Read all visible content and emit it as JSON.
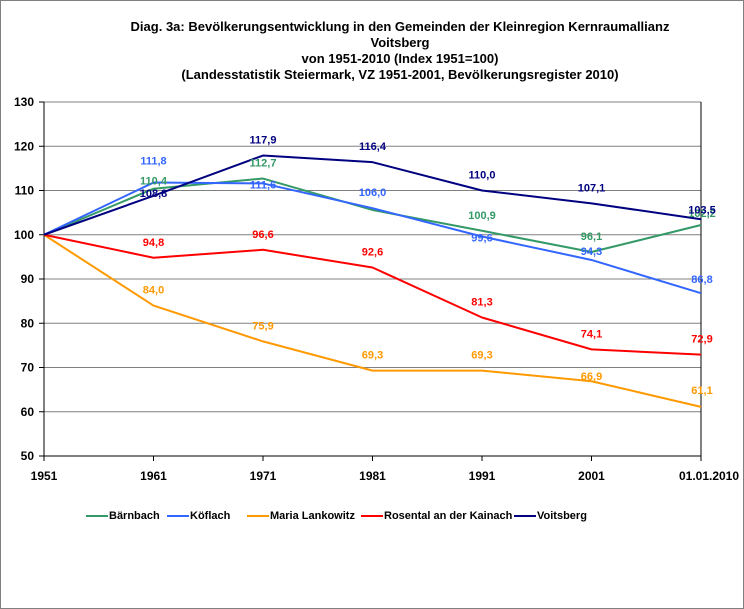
{
  "chart_data": {
    "type": "line",
    "title": "Diag. 3a: Bevölkerungsentwicklung  in den Gemeinden  der Kleinregion  Kernraumallianz Voitsberg",
    "title_lines": [
      "Diag. 3a: Bevölkerungsentwicklung  in den Gemeinden  der Kleinregion  Kernraumallianz",
      "Voitsberg",
      "von 1951-2010  (Index 1951=100)",
      "(Landesstatistik  Steiermark,  VZ 1951-2001,  Bevölkerungsregister  2010)"
    ],
    "xlabel": "",
    "ylabel": "",
    "categories": [
      "1951",
      "1961",
      "1971",
      "1981",
      "1991",
      "2001",
      "01.01.2010"
    ],
    "ylim": [
      50,
      130
    ],
    "yticks": [
      50,
      60,
      70,
      80,
      90,
      100,
      110,
      120,
      130
    ],
    "grid": true,
    "legend_position": "bottom",
    "series": [
      {
        "name": "Bärnbach",
        "color": "#339966",
        "values": [
          100,
          110.4,
          112.7,
          105.6,
          100.9,
          96.1,
          102.2
        ],
        "labels": [
          "",
          "110,4",
          "112,7",
          "",
          "100,9",
          "96,1",
          "102,2"
        ]
      },
      {
        "name": "Köflach",
        "color": "#3366FF",
        "values": [
          100,
          111.8,
          111.6,
          106.0,
          99.6,
          94.3,
          86.8
        ],
        "labels": [
          "",
          "111,8",
          "111,6",
          "106,0",
          "99,6",
          "94,3",
          "86,8"
        ]
      },
      {
        "name": "Maria Lankowitz",
        "color": "#FF9900",
        "values": [
          100,
          84.0,
          75.9,
          69.3,
          69.3,
          66.9,
          61.1
        ],
        "labels": [
          "",
          "84,0",
          "75,9",
          "69,3",
          "69,3",
          "66,9",
          "61,1"
        ]
      },
      {
        "name": "Rosental an der Kainach",
        "color": "#FF0000",
        "values": [
          100,
          94.8,
          96.6,
          92.6,
          81.3,
          74.1,
          72.9
        ],
        "labels": [
          "",
          "94,8",
          "96,6",
          "92,6",
          "81,3",
          "74,1",
          "72,9"
        ]
      },
      {
        "name": "Voitsberg",
        "color": "#000080",
        "values": [
          100,
          108.8,
          117.9,
          116.4,
          110.0,
          107.1,
          103.5
        ],
        "labels": [
          "",
          "108,8",
          "117,9",
          "116,4",
          "110,0",
          "107,1",
          "103,5"
        ]
      }
    ]
  }
}
